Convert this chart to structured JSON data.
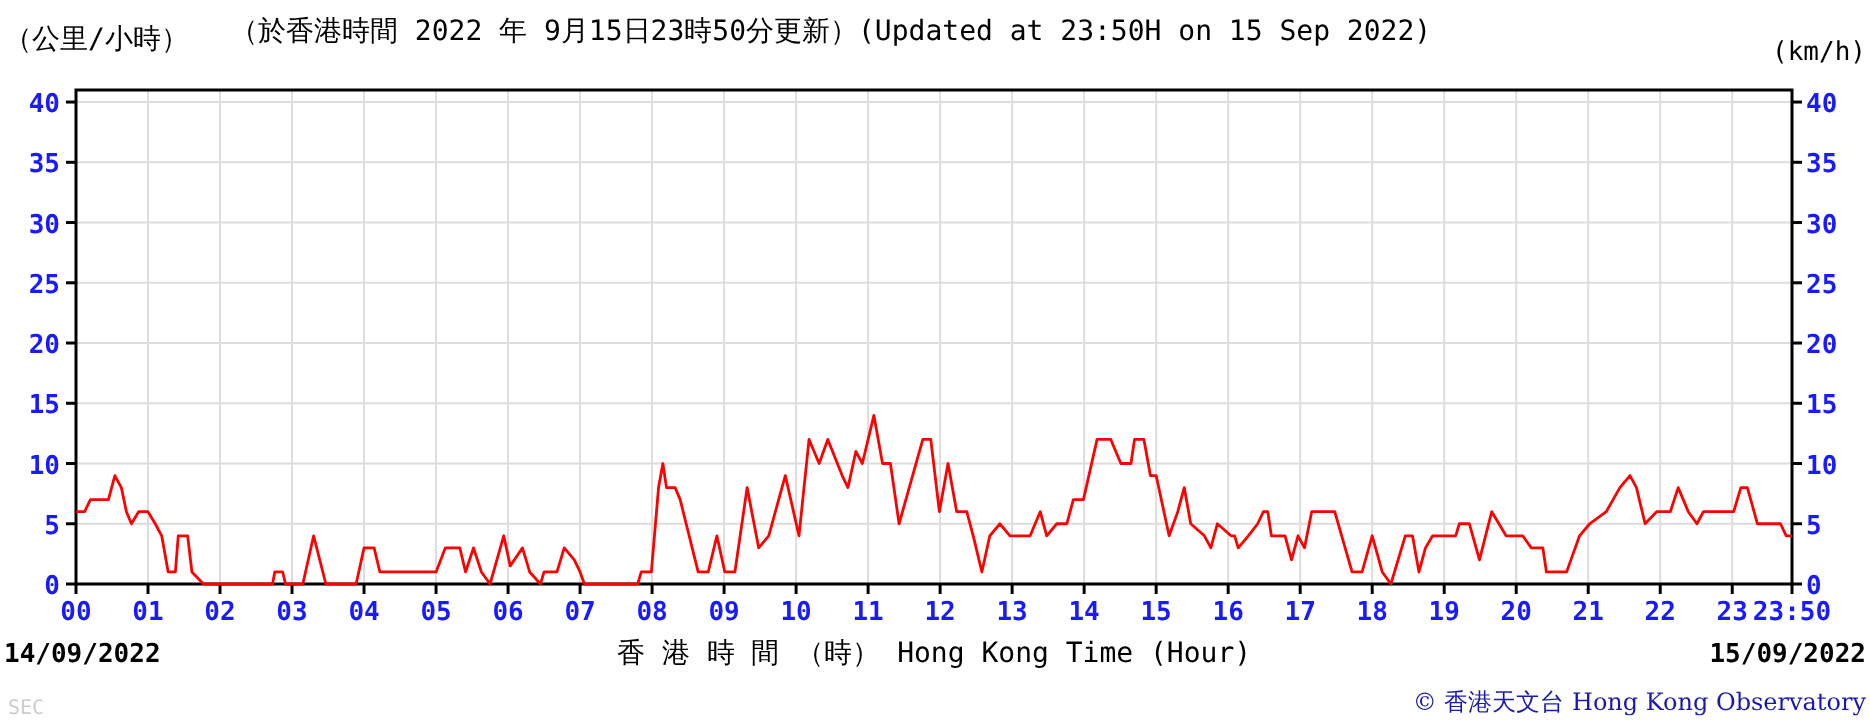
{
  "chart_data": {
    "type": "line",
    "title": "（於香港時間 2022 年 9月15日23時50分更新）(Updated at 23:50H on 15 Sep 2022)",
    "ylabel": "（公里/小時）",
    "y2label": "(km/h)",
    "xlabel": "香 港 時 間 （時） Hong Kong Time (Hour)",
    "annotations": [
      "14/09/2022",
      "15/09/2022",
      "SEC",
      "© 香港天文台 Hong Kong Observatory"
    ],
    "xlim": [
      0,
      23.83
    ],
    "ylim": [
      0,
      41
    ],
    "y2lim": [
      0,
      41
    ],
    "xticks": [
      {
        "value": 0,
        "label": "00"
      },
      {
        "value": 1,
        "label": "01"
      },
      {
        "value": 2,
        "label": "02"
      },
      {
        "value": 3,
        "label": "03"
      },
      {
        "value": 4,
        "label": "04"
      },
      {
        "value": 5,
        "label": "05"
      },
      {
        "value": 6,
        "label": "06"
      },
      {
        "value": 7,
        "label": "07"
      },
      {
        "value": 8,
        "label": "08"
      },
      {
        "value": 9,
        "label": "09"
      },
      {
        "value": 10,
        "label": "10"
      },
      {
        "value": 11,
        "label": "11"
      },
      {
        "value": 12,
        "label": "12"
      },
      {
        "value": 13,
        "label": "13"
      },
      {
        "value": 14,
        "label": "14"
      },
      {
        "value": 15,
        "label": "15"
      },
      {
        "value": 16,
        "label": "16"
      },
      {
        "value": 17,
        "label": "17"
      },
      {
        "value": 18,
        "label": "18"
      },
      {
        "value": 19,
        "label": "19"
      },
      {
        "value": 20,
        "label": "20"
      },
      {
        "value": 21,
        "label": "21"
      },
      {
        "value": 22,
        "label": "22"
      },
      {
        "value": 23,
        "label": "23"
      },
      {
        "value": 23.83,
        "label": "23:50"
      }
    ],
    "yticks": [
      0,
      5,
      10,
      15,
      20,
      25,
      30,
      35,
      40
    ],
    "y2ticks": [
      0,
      5,
      10,
      15,
      20,
      25,
      30,
      35,
      40
    ],
    "grid": true,
    "marker": "none",
    "line_style": "solid",
    "series": [
      {
        "color": "#ff0000",
        "x": [
          0,
          0.12,
          0.2,
          0.3,
          0.45,
          0.54,
          0.63,
          0.7,
          0.77,
          0.87,
          1.0,
          1.1,
          1.19,
          1.28,
          1.38,
          1.42,
          1.55,
          1.61,
          1.77,
          2.73,
          2.76,
          2.87,
          2.91,
          3.15,
          3.3,
          3.47,
          3.89,
          4.0,
          4.14,
          4.22,
          5.0,
          5.13,
          5.33,
          5.41,
          5.52,
          5.63,
          5.75,
          5.94,
          6.03,
          6.2,
          6.3,
          6.45,
          6.5,
          6.68,
          6.78,
          6.92,
          7.0,
          7.06,
          7.8,
          7.85,
          7.99,
          8.09,
          8.15,
          8.2,
          8.32,
          8.39,
          8.64,
          8.78,
          8.9,
          9.01,
          9.15,
          9.32,
          9.48,
          9.62,
          9.85,
          10.04,
          10.18,
          10.32,
          10.44,
          10.64,
          10.72,
          10.83,
          10.92,
          11.08,
          11.2,
          11.31,
          11.43,
          11.76,
          11.87,
          11.99,
          12.11,
          12.23,
          12.37,
          12.46,
          12.58,
          12.69,
          12.83,
          12.97,
          13.25,
          13.39,
          13.48,
          13.62,
          13.76,
          13.85,
          13.99,
          14.18,
          14.37,
          14.51,
          14.65,
          14.7,
          14.83,
          14.92,
          15.0,
          15.18,
          15.3,
          15.39,
          15.48,
          15.67,
          15.76,
          15.85,
          16.04,
          16.09,
          16.14,
          16.28,
          16.41,
          16.49,
          16.55,
          16.6,
          16.79,
          16.88,
          16.97,
          17.06,
          17.16,
          17.48,
          17.72,
          17.86,
          18.0,
          18.14,
          18.26,
          18.46,
          18.56,
          18.65,
          18.74,
          18.84,
          19.16,
          19.21,
          19.35,
          19.49,
          19.66,
          19.86,
          20.09,
          20.21,
          20.37,
          20.42,
          20.7,
          20.76,
          20.88,
          21.02,
          21.25,
          21.44,
          21.58,
          21.67,
          21.79,
          21.95,
          22.14,
          22.25,
          22.39,
          22.51,
          22.6,
          23.02,
          23.12,
          23.21,
          23.35,
          23.67,
          23.75,
          23.83
        ],
        "values": [
          6,
          6,
          7,
          7,
          7,
          9,
          8,
          6,
          5,
          6,
          6,
          5,
          4,
          1,
          1,
          4,
          4,
          1,
          0,
          0,
          1,
          1,
          0,
          0,
          4,
          0,
          0,
          3,
          3,
          1,
          1,
          3,
          3,
          1,
          3,
          1,
          0,
          4,
          1.5,
          3,
          1,
          0,
          1,
          1,
          3,
          2,
          1,
          0,
          0,
          1,
          1,
          8,
          10,
          8,
          8,
          7,
          1,
          1,
          4,
          1,
          1,
          8,
          3,
          4,
          9,
          4,
          12,
          10,
          12,
          9,
          8,
          11,
          10,
          14,
          10,
          10,
          5,
          12,
          12,
          6,
          10,
          6,
          6,
          4,
          1,
          4,
          5,
          4,
          4,
          6,
          4,
          5,
          5,
          7,
          7,
          12,
          12,
          10,
          10,
          12,
          12,
          9,
          9,
          4,
          6,
          8,
          5,
          4,
          3,
          5,
          4,
          4,
          3,
          4,
          5,
          6,
          6,
          4,
          4,
          2,
          4,
          3,
          6,
          6,
          1,
          1,
          4,
          1,
          0,
          4,
          4,
          1,
          3,
          4,
          4,
          5,
          5,
          2,
          6,
          4,
          4,
          3,
          3,
          1,
          1,
          2,
          4,
          5,
          6,
          8,
          9,
          8,
          5,
          6,
          6,
          8,
          6,
          5,
          6,
          6,
          8,
          8,
          5,
          5,
          4,
          4
        ]
      }
    ]
  }
}
